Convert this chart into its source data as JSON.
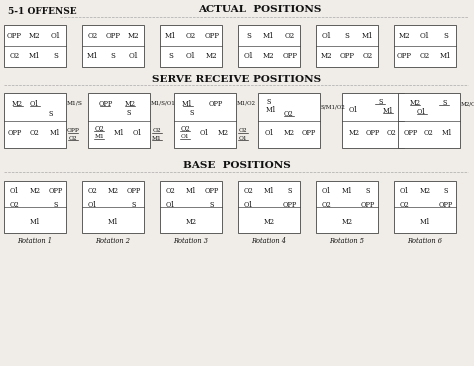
{
  "title_offense": "5-1 OFFENSE",
  "title_actual": "ACTUAL  POSITIONS",
  "title_serve": "SERVE RECEIVE POSITIONS",
  "title_base": "BASE  POSITIONS",
  "bg_color": "#f0ede8",
  "box_edge": "#444444",
  "text_color": "#111111",
  "actual_rotations": [
    {
      "top": [
        "OPP",
        "M2",
        "O1"
      ],
      "bot": [
        "O2",
        "M1",
        "S"
      ]
    },
    {
      "top": [
        "O2",
        "OPP",
        "M2"
      ],
      "bot": [
        "M1",
        "S",
        "O1"
      ]
    },
    {
      "top": [
        "M1",
        "O2",
        "OPP"
      ],
      "bot": [
        "S",
        "O1",
        "M2"
      ]
    },
    {
      "top": [
        "S",
        "M1",
        "O2"
      ],
      "bot": [
        "O1",
        "M2",
        "OPP"
      ]
    },
    {
      "top": [
        "O1",
        "S",
        "M1"
      ],
      "bot": [
        "M2",
        "OPP",
        "O2"
      ]
    },
    {
      "top": [
        "M2",
        "O1",
        "S"
      ],
      "bot": [
        "OPP",
        "O2",
        "M1"
      ]
    }
  ],
  "base_rotations": [
    {
      "top": [
        "O1",
        "M2",
        "OPP"
      ],
      "mid_l": "O2",
      "mid_r": "S",
      "bot": "M1",
      "label": "Rotation 1"
    },
    {
      "top": [
        "O2",
        "M2",
        "OPP"
      ],
      "mid_l": "O1",
      "mid_r": "S",
      "bot": "M1",
      "label": "Rotation 2"
    },
    {
      "top": [
        "O2",
        "M1",
        "OPP"
      ],
      "mid_l": "O1",
      "mid_r": "S",
      "bot": "M2",
      "label": "Rotation 3"
    },
    {
      "top": [
        "O2",
        "M1",
        "S"
      ],
      "mid_l": "O1",
      "mid_r": "OPP",
      "bot": "M2",
      "label": "Rotation 4"
    },
    {
      "top": [
        "O1",
        "M1",
        "S"
      ],
      "mid_l": "O2",
      "mid_r": "OPP",
      "bot": "M2",
      "label": "Rotation 5"
    },
    {
      "top": [
        "O1",
        "M2",
        "S"
      ],
      "mid_l": "O2",
      "mid_r": "OPP",
      "bot": "M1",
      "label": "Rotation 6"
    }
  ]
}
